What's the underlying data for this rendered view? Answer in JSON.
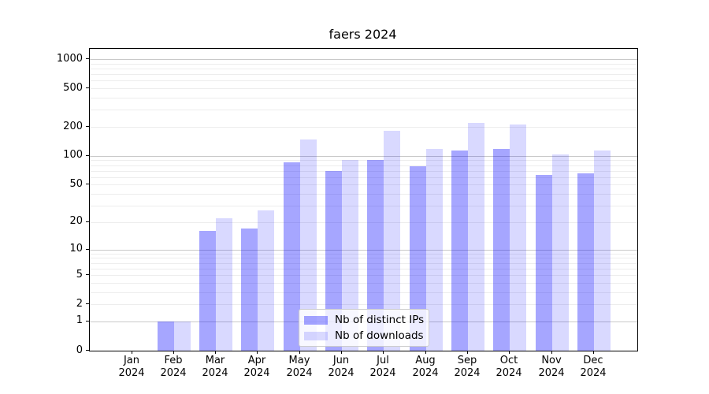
{
  "title": "faers 2024",
  "legend": {
    "items": [
      {
        "label": "Nb of distinct IPs",
        "swatch_color": "rgba(0,0,255,0.35)"
      },
      {
        "label": "Nb of downloads",
        "swatch_color": "rgba(0,0,255,0.15)"
      }
    ]
  },
  "chart_data": {
    "type": "bar",
    "title": "faers 2024",
    "categories": [
      "Jan 2024",
      "Feb 2024",
      "Mar 2024",
      "Apr 2024",
      "May 2024",
      "Jun 2024",
      "Jul 2024",
      "Aug 2024",
      "Sep 2024",
      "Oct 2024",
      "Nov 2024",
      "Dec 2024"
    ],
    "month_labels": [
      "Jan",
      "Feb",
      "Mar",
      "Apr",
      "May",
      "Jun",
      "Jul",
      "Aug",
      "Sep",
      "Oct",
      "Nov",
      "Dec"
    ],
    "year_label": "2024",
    "series": [
      {
        "name": "Nb of distinct IPs",
        "color": "rgba(0,0,255,0.35)",
        "values": [
          0,
          1,
          16,
          17,
          86,
          70,
          90,
          78,
          114,
          118,
          63,
          66
        ]
      },
      {
        "name": "Nb of downloads",
        "color": "rgba(0,0,255,0.15)",
        "values": [
          0,
          1,
          22,
          27,
          147,
          91,
          183,
          118,
          220,
          212,
          104,
          114
        ]
      }
    ],
    "xlabel": "",
    "ylabel": "",
    "y_axis": {
      "scale": "log1p",
      "ticks": [
        0,
        1,
        2,
        5,
        10,
        20,
        50,
        100,
        200,
        500,
        1000
      ],
      "top_value": 1276
    },
    "grid": "both",
    "legend_position": "lower center"
  },
  "colors": {
    "bar_distinct_ips": "rgba(0,0,255,0.35)",
    "bar_downloads": "rgba(0,0,255,0.15)",
    "grid_major": "#c9c9c9",
    "grid_minor": "#ededed",
    "axis_line": "#000000",
    "background": "#ffffff"
  }
}
